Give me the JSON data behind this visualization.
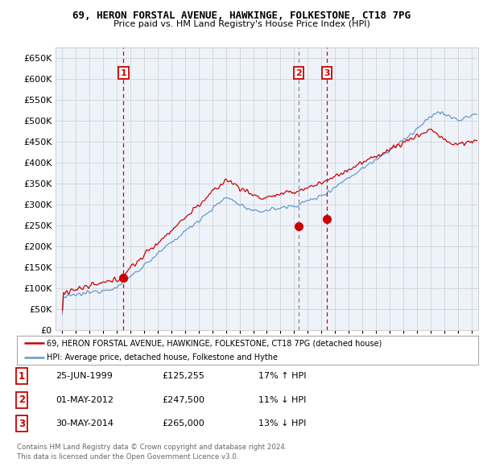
{
  "title": "69, HERON FORSTAL AVENUE, HAWKINGE, FOLKESTONE, CT18 7PG",
  "subtitle": "Price paid vs. HM Land Registry's House Price Index (HPI)",
  "ylim": [
    0,
    675000
  ],
  "yticks": [
    0,
    50000,
    100000,
    150000,
    200000,
    250000,
    300000,
    350000,
    400000,
    450000,
    500000,
    550000,
    600000,
    650000
  ],
  "xlim_start": 1994.5,
  "xlim_end": 2025.5,
  "sale_dates": [
    1999.48,
    2012.33,
    2014.41
  ],
  "sale_prices": [
    125255,
    247500,
    265000
  ],
  "sale_labels": [
    "1",
    "2",
    "3"
  ],
  "sale_vline_styles": [
    "red_dash",
    "gray_dash",
    "red_dash"
  ],
  "legend_line1": "69, HERON FORSTAL AVENUE, HAWKINGE, FOLKESTONE, CT18 7PG (detached house)",
  "legend_line2": "HPI: Average price, detached house, Folkestone and Hythe",
  "table_rows": [
    [
      "1",
      "25-JUN-1999",
      "£125,255",
      "17% ↑ HPI"
    ],
    [
      "2",
      "01-MAY-2012",
      "£247,500",
      "11% ↓ HPI"
    ],
    [
      "3",
      "30-MAY-2014",
      "£265,000",
      "13% ↓ HPI"
    ]
  ],
  "footnote1": "Contains HM Land Registry data © Crown copyright and database right 2024.",
  "footnote2": "This data is licensed under the Open Government Licence v3.0.",
  "line_red": "#cc0000",
  "line_blue": "#6699cc",
  "grid_color": "#cccccc",
  "background_color": "#ffffff",
  "chart_bg": "#eef3fa",
  "label_box_color": "#cc0000"
}
